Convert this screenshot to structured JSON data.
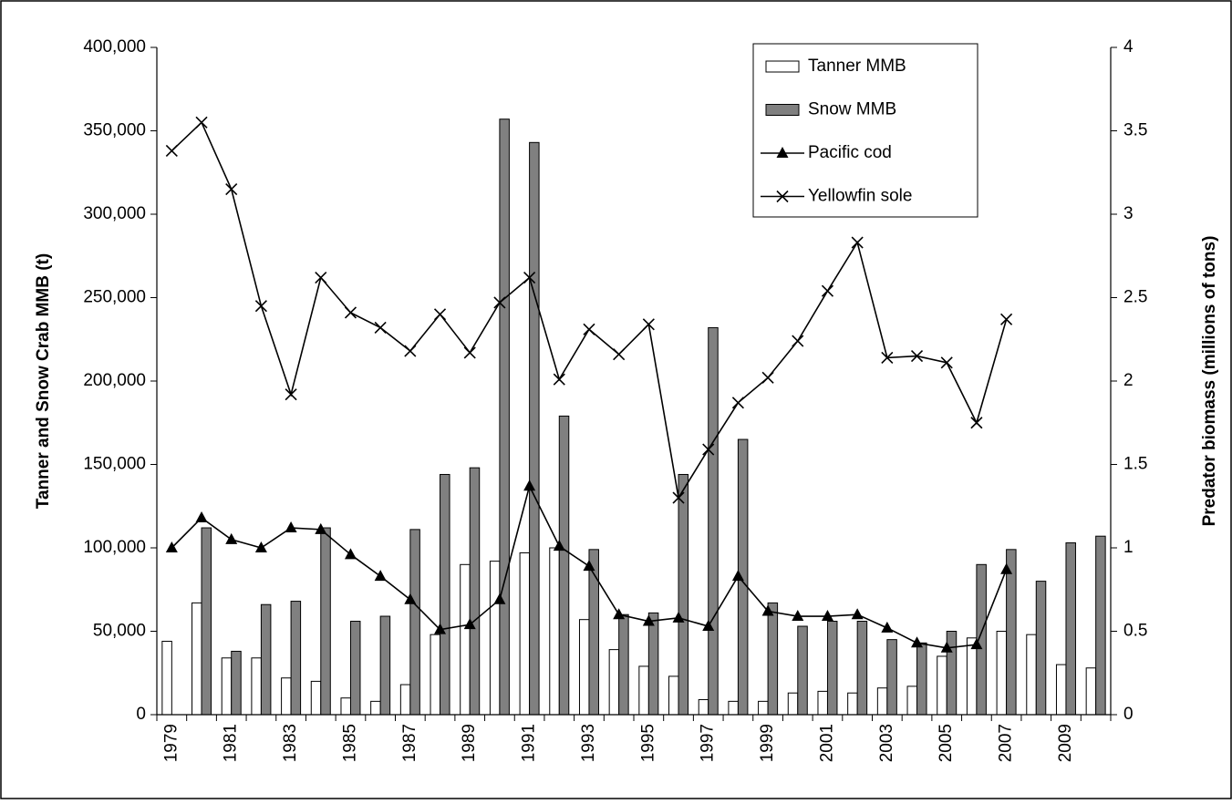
{
  "chart_data": {
    "type": "bar-line",
    "y_label": "Tanner and Snow Crab MMB (t)",
    "y2_label": "Predator biomass (millions of tons)",
    "categories": [
      "1979",
      null,
      "1981",
      null,
      "1983",
      null,
      "1985",
      null,
      "1987",
      null,
      "1989",
      null,
      "1991",
      null,
      "1993",
      null,
      "1995",
      null,
      "1997",
      null,
      "1999",
      null,
      "2001",
      null,
      "2003",
      null,
      "2005",
      null,
      "2007",
      null,
      "2009",
      null
    ],
    "series": [
      {
        "name": "Tanner MMB",
        "type": "bar",
        "color": "#ffffff",
        "values": [
          44000,
          67000,
          34000,
          34000,
          22000,
          20000,
          10000,
          8000,
          18000,
          48000,
          90000,
          92000,
          97000,
          100000,
          57000,
          39000,
          29000,
          23000,
          9000,
          8000,
          8000,
          13000,
          14000,
          13000,
          16000,
          17000,
          35000,
          46000,
          50000,
          48000,
          30000,
          28000
        ]
      },
      {
        "name": "Snow MMB",
        "type": "bar",
        "color": "#808080",
        "values": [
          null,
          112000,
          38000,
          66000,
          68000,
          112000,
          56000,
          59000,
          111000,
          144000,
          148000,
          357000,
          343000,
          179000,
          99000,
          60000,
          61000,
          144000,
          232000,
          165000,
          67000,
          53000,
          56000,
          56000,
          45000,
          43000,
          50000,
          90000,
          99000,
          80000,
          103000,
          107000
        ]
      },
      {
        "name": "Pacific cod",
        "type": "line",
        "axis": "y2",
        "marker": "triangle",
        "color": "#000000",
        "values": [
          1.0,
          1.18,
          1.05,
          1.0,
          1.12,
          1.11,
          0.96,
          0.83,
          0.69,
          0.51,
          0.54,
          0.69,
          1.37,
          1.01,
          0.89,
          0.6,
          0.56,
          0.58,
          0.53,
          0.83,
          0.62,
          0.59,
          0.59,
          0.6,
          0.52,
          0.43,
          0.4,
          0.42,
          0.87,
          null,
          null,
          null
        ]
      },
      {
        "name": "Yellowfin sole",
        "type": "line",
        "axis": "y2",
        "marker": "x",
        "color": "#000000",
        "values": [
          3.38,
          3.55,
          3.15,
          2.45,
          1.92,
          2.62,
          2.41,
          2.32,
          2.18,
          2.4,
          2.17,
          2.47,
          2.62,
          2.01,
          2.31,
          2.16,
          2.34,
          1.3,
          1.59,
          1.87,
          2.02,
          2.24,
          2.54,
          2.83,
          2.14,
          2.15,
          2.11,
          1.75,
          2.37,
          null,
          null,
          null
        ]
      }
    ],
    "ylim": [
      0,
      400000
    ],
    "yticks": [
      0,
      {
        "value": 50000,
        "label": "50,000"
      },
      {
        "value": 100000,
        "label": "100,000"
      },
      {
        "value": 150000,
        "label": "150,000"
      },
      {
        "value": 200000,
        "label": "200,000"
      },
      {
        "value": 250000,
        "label": "250,000"
      },
      {
        "value": 300000,
        "label": "300,000"
      },
      {
        "value": 350000,
        "label": "350,000"
      },
      {
        "value": 400000,
        "label": "400,000"
      }
    ],
    "y2lim": [
      0,
      4
    ],
    "y2ticks": [
      0,
      0.5,
      1,
      1.5,
      2,
      2.5,
      3,
      3.5,
      4
    ],
    "legend": "top-right"
  }
}
